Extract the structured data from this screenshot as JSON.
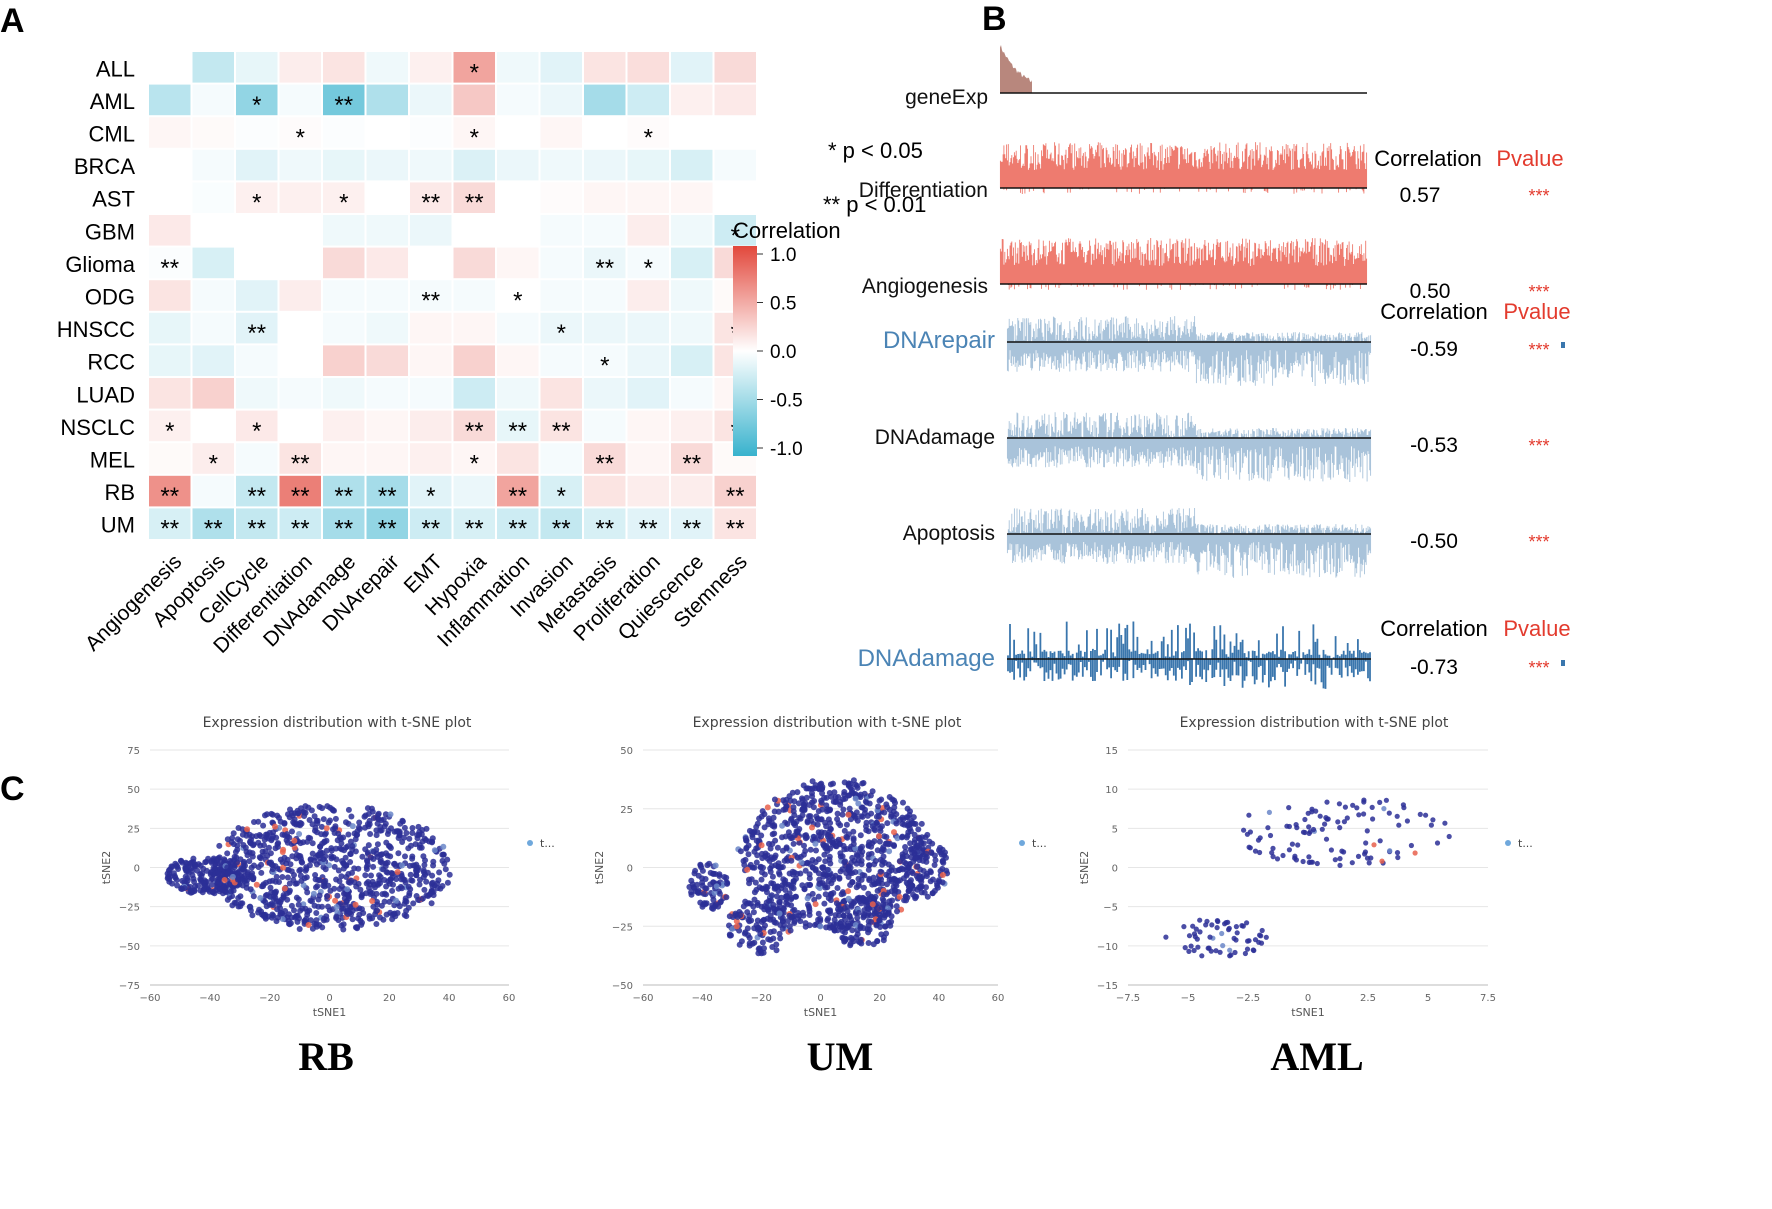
{
  "panels": {
    "a": "A",
    "b": "B",
    "c": "C"
  },
  "chart_data": [
    {
      "type": "heatmap",
      "title": "",
      "rows": [
        "ALL",
        "AML",
        "CML",
        "BRCA",
        "AST",
        "GBM",
        "Glioma",
        "ODG",
        "HNSCC",
        "RCC",
        "LUAD",
        "NSCLC",
        "MEL",
        "RB",
        "UM"
      ],
      "columns": [
        "Angiogenesis",
        "Apoptosis",
        "CellCycle",
        "Differentiation",
        "DNAdamage",
        "DNArepair",
        "EMT",
        "Hypoxia",
        "Inflammation",
        "Invasion",
        "Metastasis",
        "Proliferation",
        "Quiescence",
        "Stemness"
      ],
      "values": [
        [
          0.0,
          -0.3,
          -0.12,
          0.1,
          0.15,
          -0.08,
          0.08,
          0.5,
          -0.08,
          -0.15,
          0.15,
          0.18,
          -0.15,
          0.2
        ],
        [
          -0.35,
          -0.05,
          -0.55,
          -0.05,
          -0.7,
          -0.4,
          -0.1,
          0.3,
          -0.05,
          -0.1,
          -0.45,
          -0.25,
          0.08,
          0.12
        ],
        [
          0.05,
          0.03,
          -0.02,
          0.02,
          -0.02,
          0.0,
          -0.02,
          0.05,
          0.0,
          0.05,
          0.0,
          0.02,
          0.0,
          0.0
        ],
        [
          0.0,
          -0.05,
          -0.15,
          -0.08,
          -0.12,
          -0.1,
          -0.08,
          -0.18,
          -0.1,
          -0.08,
          -0.1,
          -0.12,
          -0.2,
          -0.05
        ],
        [
          0.0,
          -0.03,
          0.08,
          0.08,
          0.08,
          0.0,
          0.12,
          0.2,
          0.0,
          0.02,
          0.05,
          0.05,
          0.05,
          0.0
        ],
        [
          0.12,
          0.0,
          0.0,
          0.0,
          -0.08,
          -0.08,
          -0.1,
          0.0,
          0.0,
          -0.05,
          -0.05,
          0.1,
          -0.08,
          -0.25
        ],
        [
          -0.02,
          -0.2,
          0.0,
          0.0,
          0.2,
          0.12,
          0.0,
          0.2,
          0.05,
          -0.05,
          -0.1,
          -0.05,
          -0.2,
          0.2
        ],
        [
          0.15,
          -0.05,
          -0.15,
          0.1,
          -0.05,
          -0.05,
          -0.05,
          -0.05,
          0.0,
          -0.05,
          -0.05,
          0.1,
          -0.08,
          0.03
        ],
        [
          -0.12,
          -0.05,
          -0.15,
          0.0,
          -0.05,
          -0.08,
          0.05,
          0.05,
          -0.05,
          -0.1,
          -0.1,
          -0.1,
          -0.08,
          0.15
        ],
        [
          -0.12,
          -0.15,
          -0.05,
          0.0,
          0.25,
          0.2,
          0.05,
          0.25,
          0.05,
          -0.05,
          -0.05,
          -0.1,
          -0.2,
          0.15
        ],
        [
          0.15,
          0.25,
          -0.08,
          -0.05,
          -0.08,
          -0.05,
          -0.05,
          -0.25,
          -0.08,
          0.15,
          -0.1,
          -0.15,
          -0.05,
          0.05
        ],
        [
          0.08,
          0.0,
          0.12,
          0.0,
          0.08,
          0.05,
          0.1,
          0.2,
          -0.12,
          0.15,
          -0.05,
          0.05,
          0.08,
          0.15
        ],
        [
          0.03,
          0.1,
          -0.05,
          0.15,
          0.05,
          0.05,
          0.08,
          0.05,
          0.15,
          -0.05,
          0.2,
          0.05,
          0.2,
          0.03
        ],
        [
          0.6,
          -0.05,
          -0.3,
          0.7,
          -0.4,
          -0.45,
          -0.15,
          -0.1,
          0.5,
          -0.2,
          0.15,
          0.1,
          0.1,
          0.25
        ],
        [
          -0.2,
          -0.4,
          -0.3,
          -0.25,
          -0.45,
          -0.55,
          -0.25,
          -0.2,
          -0.25,
          -0.3,
          -0.2,
          -0.15,
          -0.15,
          0.15
        ]
      ],
      "significance": [
        [
          "",
          "",
          "",
          "",
          "",
          "",
          "",
          "*",
          "",
          "",
          "",
          "",
          "",
          ""
        ],
        [
          "",
          "",
          "*",
          "",
          "**",
          "",
          "",
          "",
          "",
          "",
          "",
          "",
          "",
          ""
        ],
        [
          "",
          "",
          "",
          "*",
          "",
          "",
          "",
          "*",
          "",
          "",
          "",
          "*",
          "",
          ""
        ],
        [
          "",
          "",
          "",
          "",
          "",
          "",
          "",
          "",
          "",
          "",
          "",
          "",
          "",
          ""
        ],
        [
          "",
          "",
          "*",
          "",
          "*",
          "",
          "**",
          "**",
          "",
          "",
          "",
          "",
          "",
          ""
        ],
        [
          "",
          "",
          "",
          "",
          "",
          "",
          "",
          "",
          "",
          "",
          "",
          "",
          "",
          "*"
        ],
        [
          "**",
          "",
          "",
          "",
          "",
          "",
          "",
          "",
          "",
          "",
          "**",
          "*",
          "",
          ""
        ],
        [
          "",
          "",
          "",
          "",
          "",
          "",
          "**",
          "",
          "*",
          "",
          "",
          "",
          "",
          ""
        ],
        [
          "",
          "",
          "**",
          "",
          "",
          "",
          "",
          "",
          "",
          "*",
          "",
          "",
          "",
          "*"
        ],
        [
          "",
          "",
          "",
          "",
          "",
          "",
          "",
          "",
          "",
          "",
          "*",
          "",
          "",
          ""
        ],
        [
          "",
          "",
          "",
          "",
          "",
          "",
          "",
          "",
          "",
          "",
          "",
          "",
          "",
          ""
        ],
        [
          "*",
          "",
          "*",
          "",
          "",
          "",
          "",
          "**",
          "**",
          "**",
          "",
          "",
          "",
          "*"
        ],
        [
          "",
          "*",
          "",
          "**",
          "",
          "",
          "",
          "*",
          "",
          "",
          "**",
          "",
          "**",
          ""
        ],
        [
          "**",
          "",
          "**",
          "**",
          "**",
          "**",
          "*",
          "",
          "**",
          "*",
          "",
          "",
          "",
          "**"
        ],
        [
          "**",
          "**",
          "**",
          "**",
          "**",
          "**",
          "**",
          "**",
          "**",
          "**",
          "**",
          "**",
          "**",
          "**"
        ]
      ],
      "legend_title": "Correlation",
      "legend_ticks": [
        "1.0",
        "0.5",
        "0.0",
        "-0.5",
        "-1.0"
      ],
      "legend_range": [
        -1.0,
        1.0
      ],
      "notes": [
        "* p < 0.05",
        "** p < 0.01"
      ]
    },
    {
      "type": "bar",
      "title": "",
      "tracks": [
        {
          "name": "geneExp",
          "correlation": "",
          "pvalue": "",
          "color": "#b8877d",
          "style": "sorted",
          "label_color": "#111111"
        },
        {
          "name": "Differentiation",
          "correlation": "0.57",
          "pvalue": "***",
          "color": "#ee7b6f",
          "style": "positive",
          "label_color": "#111111"
        },
        {
          "name": "Angiogenesis",
          "correlation": "0.50",
          "pvalue": "***",
          "color": "#ee7b6f",
          "style": "positive",
          "label_color": "#111111"
        },
        {
          "name": "DNArepair",
          "correlation": "-0.59",
          "pvalue": "***",
          "color": "#a9c3da",
          "style": "negative",
          "label_color": "#4b84b5"
        },
        {
          "name": "DNAdamage",
          "correlation": "-0.53",
          "pvalue": "***",
          "color": "#a9c3da",
          "style": "negative",
          "label_color": "#111111"
        },
        {
          "name": "Apoptosis",
          "correlation": "-0.50",
          "pvalue": "***",
          "color": "#a9c3da",
          "style": "negative",
          "label_color": "#111111"
        },
        {
          "name": "DNAdamage",
          "correlation": "-0.73",
          "pvalue": "***",
          "color": "#3a76ad",
          "style": "mixed",
          "label_color": "#4b84b5"
        }
      ],
      "header_correlation": "Correlation",
      "header_pvalue": "Pvalue"
    },
    {
      "type": "scatter",
      "title": "Expression distribution with t-SNE plot",
      "name": "RB",
      "xlabel": "tSNE1",
      "ylabel": "tSNE2",
      "xticks": [
        "−60",
        "−40",
        "−20",
        "0",
        "20",
        "40",
        "60"
      ],
      "yticks": [
        "75",
        "50",
        "25",
        "0",
        "−25",
        "−50",
        "−75"
      ],
      "xlim": [
        -60,
        60
      ],
      "ylim": [
        -75,
        75
      ],
      "legend": "t...",
      "clusters": [
        {
          "cx": 0,
          "cy": 0,
          "rx": 40,
          "ry": 40,
          "n": 900
        },
        {
          "cx": -40,
          "cy": -5,
          "rx": 15,
          "ry": 12,
          "n": 200
        }
      ]
    },
    {
      "type": "scatter",
      "title": "Expression distribution with t-SNE plot",
      "name": "UM",
      "xlabel": "tSNE1",
      "ylabel": "tSNE2",
      "xticks": [
        "−60",
        "−40",
        "−20",
        "0",
        "20",
        "40",
        "60"
      ],
      "yticks": [
        "50",
        "25",
        "0",
        "−25",
        "−50"
      ],
      "xlim": [
        -60,
        60
      ],
      "ylim": [
        -50,
        50
      ],
      "legend": "t...",
      "clusters": [
        {
          "cx": 5,
          "cy": 5,
          "rx": 32,
          "ry": 32,
          "n": 900
        },
        {
          "cx": -38,
          "cy": -8,
          "rx": 7,
          "ry": 10,
          "n": 80
        },
        {
          "cx": 35,
          "cy": 0,
          "rx": 8,
          "ry": 14,
          "n": 100
        },
        {
          "cx": 14,
          "cy": -23,
          "rx": 10,
          "ry": 12,
          "n": 120
        },
        {
          "cx": -20,
          "cy": -25,
          "rx": 12,
          "ry": 12,
          "n": 120
        }
      ]
    },
    {
      "type": "scatter",
      "title": "Expression distribution with t-SNE plot",
      "name": "AML",
      "xlabel": "tSNE1",
      "ylabel": "tSNE2",
      "xticks": [
        "−7.5",
        "−5",
        "−2.5",
        "0",
        "2.5",
        "5",
        "7.5"
      ],
      "yticks": [
        "15",
        "10",
        "5",
        "0",
        "−5",
        "−10",
        "−15"
      ],
      "xlim": [
        -7.5,
        7.5
      ],
      "ylim": [
        -15,
        15
      ],
      "legend": "t...",
      "clusters": [
        {
          "cx": 1.5,
          "cy": 4.5,
          "rx": 4.5,
          "ry": 4.5,
          "n": 110
        },
        {
          "cx": -3.8,
          "cy": -9,
          "rx": 2.2,
          "ry": 2.5,
          "n": 60
        }
      ]
    }
  ]
}
